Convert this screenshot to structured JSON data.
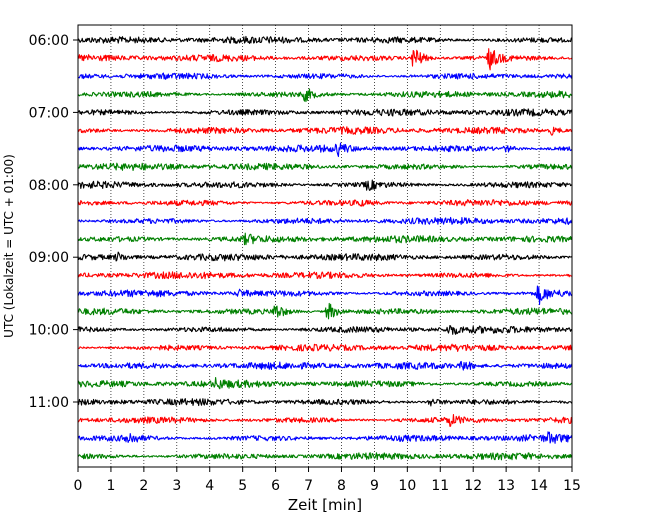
{
  "chart_data": {
    "type": "line",
    "title": "",
    "xlabel": "Zeit  [min]",
    "ylabel": "UTC (Lokalzeit = UTC + 01:00)",
    "xlim": [
      0,
      15
    ],
    "x_ticks": [
      0,
      1,
      2,
      3,
      4,
      5,
      6,
      7,
      8,
      9,
      10,
      11,
      12,
      13,
      14,
      15
    ],
    "y_tick_labels": [
      "06:00",
      "07:00",
      "08:00",
      "09:00",
      "10:00",
      "11:00"
    ],
    "row_interval_min": 15,
    "row_start": "06:00",
    "grid": {
      "x": "dotted vertical",
      "y": false
    },
    "row_colors": [
      "#000000",
      "#ff0000",
      "#0000ff",
      "#008000"
    ],
    "rows": [
      {
        "start": "06:00",
        "color": "#000000",
        "events": []
      },
      {
        "start": "06:15",
        "color": "#ff0000",
        "events": [
          {
            "t": 10.2,
            "amp": 1.0
          },
          {
            "t": 12.5,
            "amp": 0.8
          }
        ]
      },
      {
        "start": "06:30",
        "color": "#0000ff",
        "events": []
      },
      {
        "start": "06:45",
        "color": "#008000",
        "events": [
          {
            "t": 6.9,
            "amp": 0.45
          }
        ]
      },
      {
        "start": "07:00",
        "color": "#000000",
        "events": []
      },
      {
        "start": "07:15",
        "color": "#ff0000",
        "events": [
          {
            "t": 14.4,
            "amp": 0.3
          }
        ]
      },
      {
        "start": "07:30",
        "color": "#0000ff",
        "events": [
          {
            "t": 7.9,
            "amp": 0.4
          },
          {
            "t": 13.0,
            "amp": 0.25
          }
        ]
      },
      {
        "start": "07:45",
        "color": "#008000",
        "events": []
      },
      {
        "start": "08:00",
        "color": "#000000",
        "events": [
          {
            "t": 8.8,
            "amp": 0.35
          }
        ]
      },
      {
        "start": "08:15",
        "color": "#ff0000",
        "events": [
          {
            "t": 8.5,
            "amp": 0.2
          }
        ]
      },
      {
        "start": "08:30",
        "color": "#0000ff",
        "events": []
      },
      {
        "start": "08:45",
        "color": "#008000",
        "events": [
          {
            "t": 5.1,
            "amp": 0.3
          }
        ]
      },
      {
        "start": "09:00",
        "color": "#000000",
        "events": [
          {
            "t": 1.2,
            "amp": 0.3
          }
        ]
      },
      {
        "start": "09:15",
        "color": "#ff0000",
        "events": []
      },
      {
        "start": "09:30",
        "color": "#0000ff",
        "events": [
          {
            "t": 14.0,
            "amp": 0.75
          },
          {
            "t": 4.9,
            "amp": 0.25
          }
        ]
      },
      {
        "start": "09:45",
        "color": "#008000",
        "events": [
          {
            "t": 6.0,
            "amp": 0.6
          },
          {
            "t": 7.6,
            "amp": 0.75
          }
        ]
      },
      {
        "start": "10:00",
        "color": "#000000",
        "events": [
          {
            "t": 11.3,
            "amp": 0.35
          }
        ]
      },
      {
        "start": "10:15",
        "color": "#ff0000",
        "events": []
      },
      {
        "start": "10:30",
        "color": "#0000ff",
        "events": [
          {
            "t": 11.7,
            "amp": 0.4
          }
        ]
      },
      {
        "start": "10:45",
        "color": "#008000",
        "events": [
          {
            "t": 4.2,
            "amp": 0.3
          }
        ]
      },
      {
        "start": "11:00",
        "color": "#000000",
        "events": [
          {
            "t": 10.7,
            "amp": 0.3
          }
        ]
      },
      {
        "start": "11:15",
        "color": "#ff0000",
        "events": [
          {
            "t": 11.3,
            "amp": 0.35
          }
        ]
      },
      {
        "start": "11:30",
        "color": "#0000ff",
        "events": [
          {
            "t": 1.5,
            "amp": 0.45
          },
          {
            "t": 14.3,
            "amp": 0.3
          }
        ]
      },
      {
        "start": "11:45",
        "color": "#008000",
        "events": []
      }
    ]
  }
}
